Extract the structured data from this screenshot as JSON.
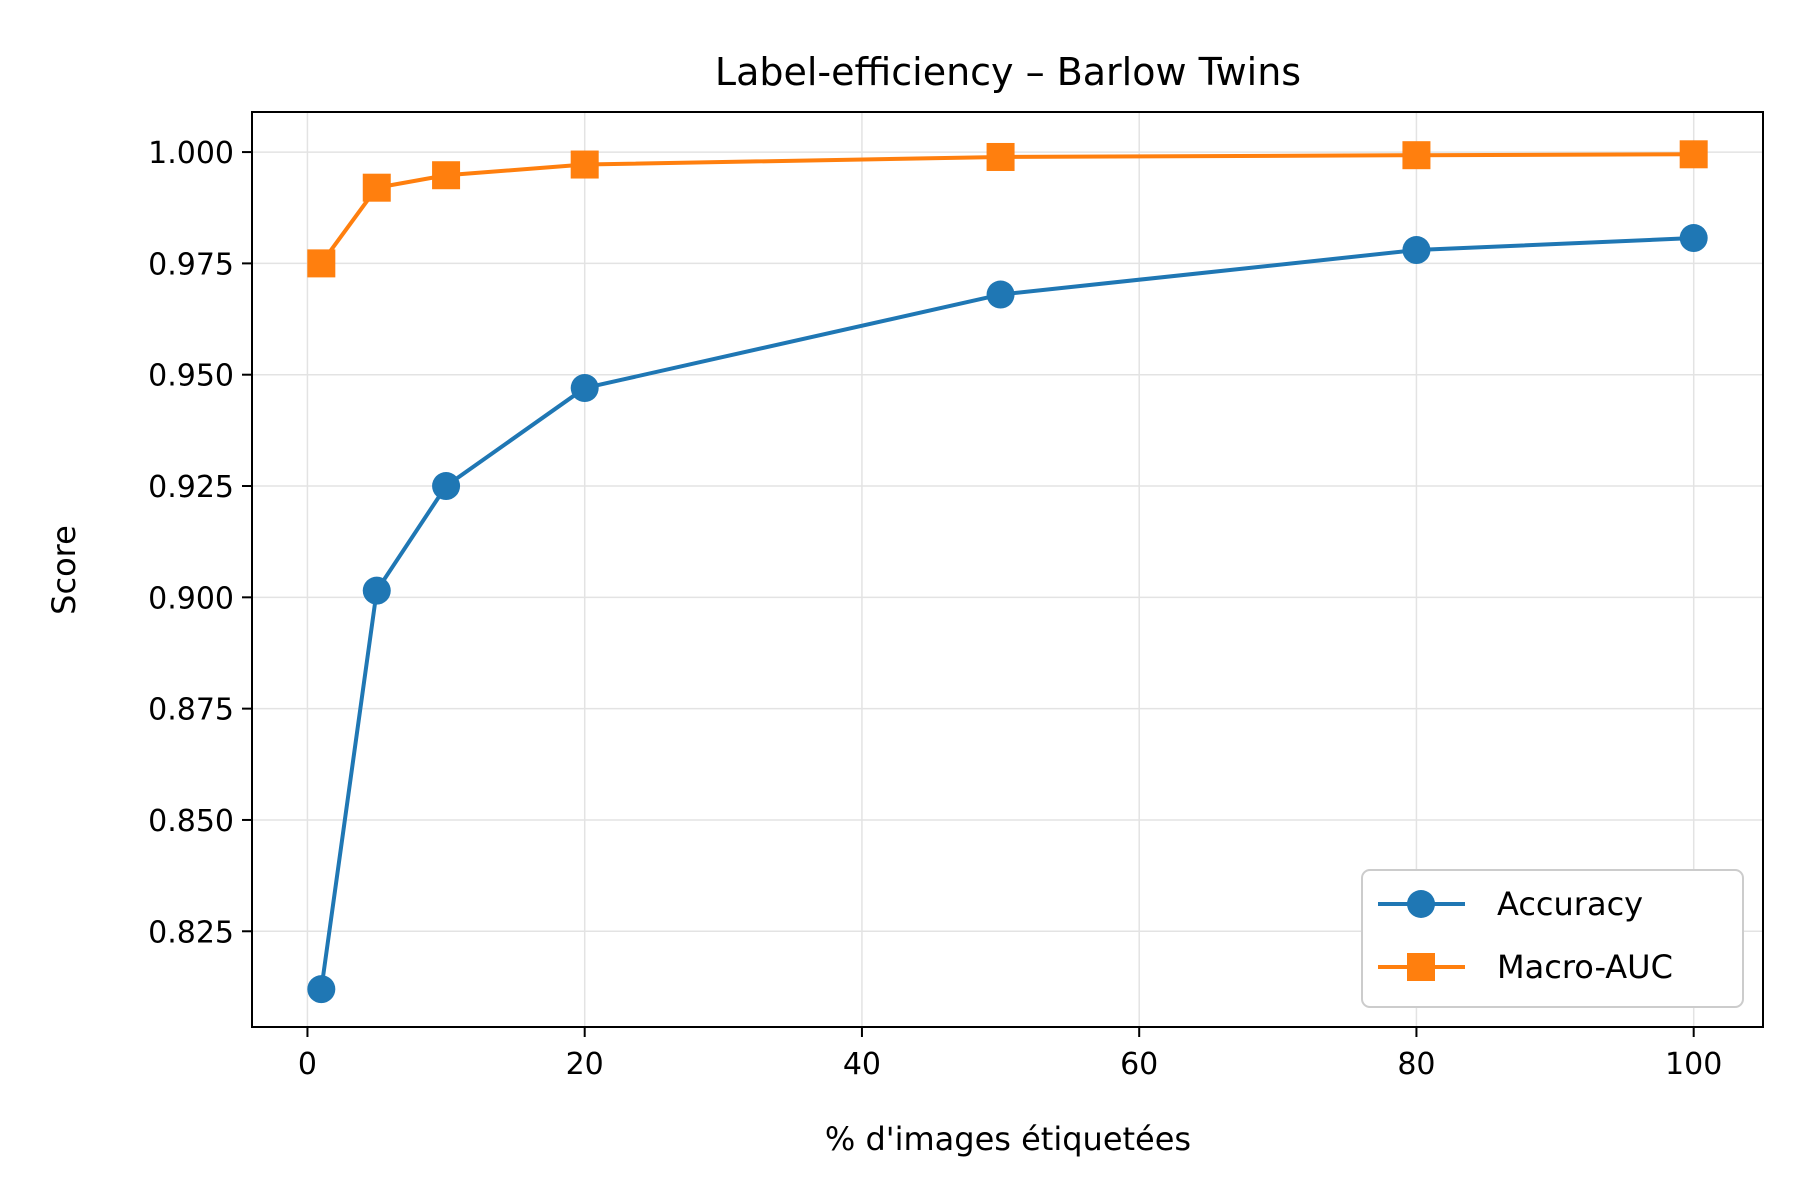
{
  "chart_data": {
    "type": "line",
    "title": "Label-efficiency – Barlow Twins",
    "xlabel": "% d'images étiquetées",
    "ylabel": "Score",
    "x": [
      1,
      5,
      10,
      20,
      50,
      80,
      100
    ],
    "xlim": [
      -4,
      105
    ],
    "ylim": [
      0.8035,
      1.009
    ],
    "xticks": [
      0,
      20,
      40,
      60,
      80,
      100
    ],
    "xtick_labels": [
      "0",
      "20",
      "40",
      "60",
      "80",
      "100"
    ],
    "yticks": [
      0.825,
      0.85,
      0.875,
      0.9,
      0.925,
      0.95,
      0.975,
      1.0
    ],
    "ytick_labels": [
      "0.825",
      "0.850",
      "0.875",
      "0.900",
      "0.925",
      "0.950",
      "0.975",
      "1.000"
    ],
    "grid": true,
    "legend_position": "lower-right",
    "series": [
      {
        "name": "Accuracy",
        "color": "#1f77b4",
        "marker": "circle",
        "values": [
          0.812,
          0.9015,
          0.925,
          0.947,
          0.968,
          0.978,
          0.9807
        ]
      },
      {
        "name": "Macro-AUC",
        "color": "#ff7f0e",
        "marker": "square",
        "values": [
          0.975,
          0.992,
          0.9948,
          0.9972,
          0.9989,
          0.9993,
          0.9995
        ]
      }
    ]
  }
}
